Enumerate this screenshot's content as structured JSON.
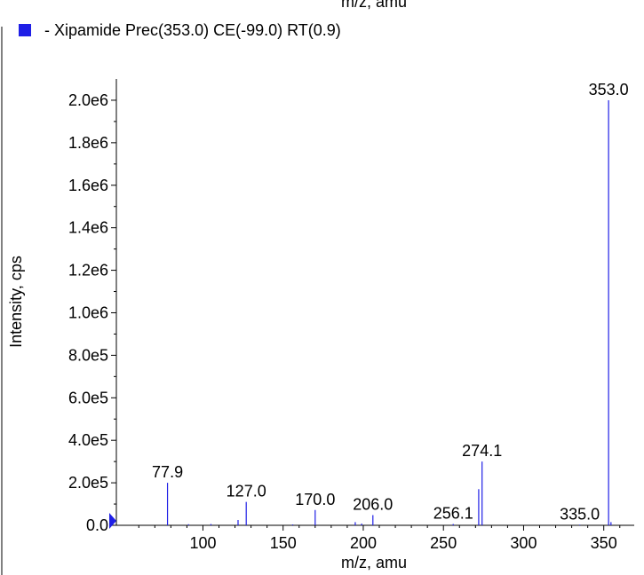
{
  "top_cut_label": "m/z, amu",
  "legend": {
    "text": "- Xipamide  Prec(353.0) CE(-99.0) RT(0.9)",
    "swatch_color": "#1f1fe6"
  },
  "chart_data": {
    "type": "bar",
    "xlabel": "m/z, amu",
    "ylabel": "Intensity, cps",
    "xlim": [
      46,
      369
    ],
    "ylim": [
      0,
      2100000
    ],
    "x_ticks": [
      100,
      150,
      200,
      250,
      300,
      350
    ],
    "y_ticks": [
      {
        "value": 0,
        "label": "0.0"
      },
      {
        "value": 200000,
        "label": "2.0e5"
      },
      {
        "value": 400000,
        "label": "4.0e5"
      },
      {
        "value": 600000,
        "label": "6.0e5"
      },
      {
        "value": 800000,
        "label": "8.0e5"
      },
      {
        "value": 1000000,
        "label": "1.0e6"
      },
      {
        "value": 1200000,
        "label": "1.2e6"
      },
      {
        "value": 1400000,
        "label": "1.4e6"
      },
      {
        "value": 1600000,
        "label": "1.6e6"
      },
      {
        "value": 1800000,
        "label": "1.8e6"
      },
      {
        "value": 2000000,
        "label": "2.0e6"
      }
    ],
    "bar_color": "#1f1fe6",
    "peaks": [
      {
        "mz": 77.9,
        "intensity": 200000,
        "label": "77.9"
      },
      {
        "mz": 91.0,
        "intensity": 5000
      },
      {
        "mz": 105.0,
        "intensity": 6000
      },
      {
        "mz": 121.9,
        "intensity": 25000
      },
      {
        "mz": 127.0,
        "intensity": 110000,
        "label": "127.0"
      },
      {
        "mz": 156.0,
        "intensity": 4000
      },
      {
        "mz": 170.0,
        "intensity": 72000,
        "label": "170.0"
      },
      {
        "mz": 195.0,
        "intensity": 15000
      },
      {
        "mz": 199.0,
        "intensity": 8000
      },
      {
        "mz": 206.0,
        "intensity": 48000,
        "label": "206.0"
      },
      {
        "mz": 256.1,
        "intensity": 6000,
        "label": "256.1"
      },
      {
        "mz": 272.0,
        "intensity": 170000
      },
      {
        "mz": 274.1,
        "intensity": 300000,
        "label": "274.1"
      },
      {
        "mz": 335.0,
        "intensity": 3000,
        "label": "335.0"
      },
      {
        "mz": 353.0,
        "intensity": 2000000,
        "label": "353.0"
      },
      {
        "mz": 354.5,
        "intensity": 15000
      }
    ],
    "precursor_marker": {
      "mz": 353.0,
      "color": "#1f1fe6"
    }
  }
}
